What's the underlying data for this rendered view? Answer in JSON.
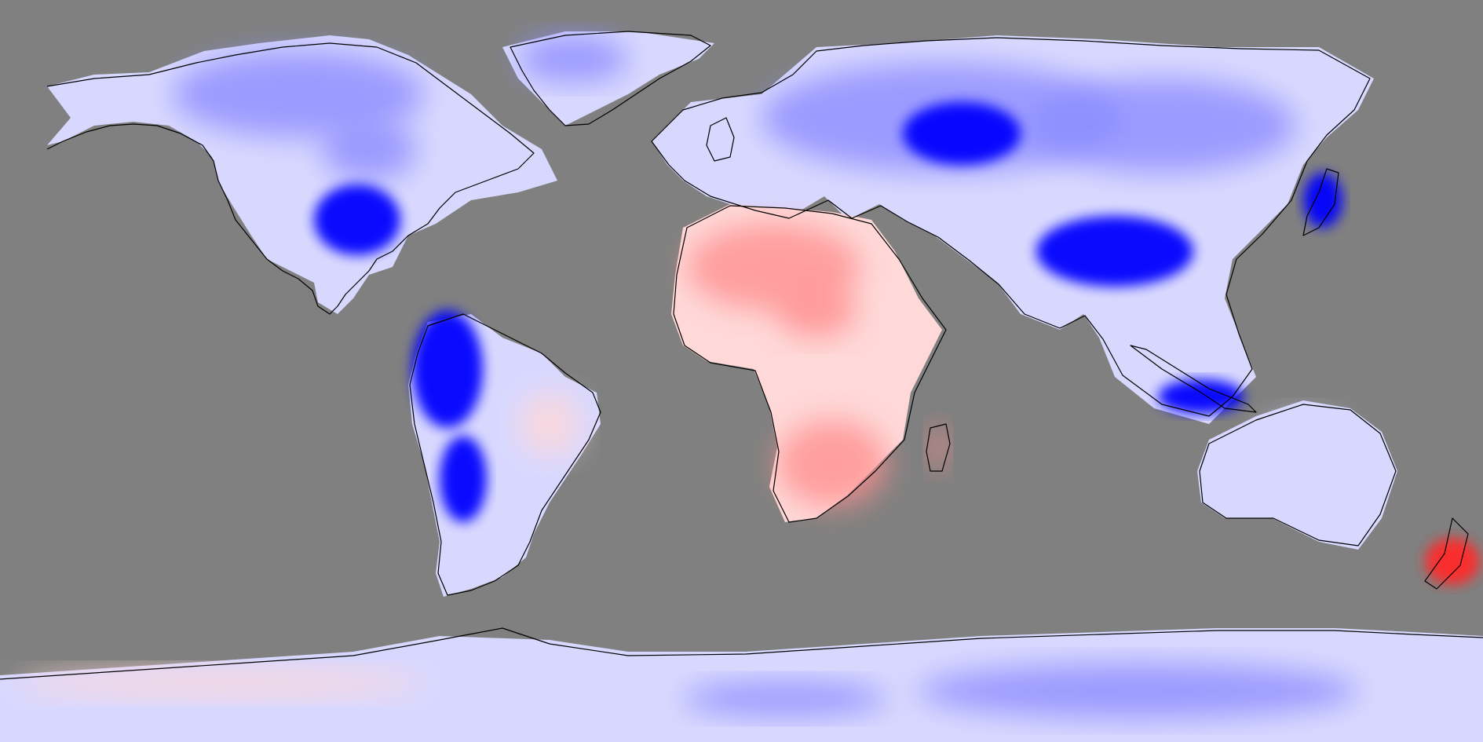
{
  "map": {
    "projection": "equirectangular",
    "ocean_mask_color": "#808080",
    "coastline_color": "#000000",
    "color_scale": {
      "strong_negative": "#0000ff",
      "negative": "#8c8cff",
      "weak_negative": "#d8d8ff",
      "neutral": "#ffffff",
      "weak_positive": "#ffd8d8",
      "positive": "#ff9090",
      "strong_positive": "#ff2a2a"
    },
    "regions": [
      {
        "name": "canada",
        "sign": "negative"
      },
      {
        "name": "greenland",
        "sign": "negative"
      },
      {
        "name": "central-united-states",
        "sign": "strong-negative"
      },
      {
        "name": "northern-south-america",
        "sign": "strong-negative"
      },
      {
        "name": "southern-andes",
        "sign": "strong-negative"
      },
      {
        "name": "eastern-brazil",
        "sign": "weak-positive"
      },
      {
        "name": "sahara",
        "sign": "positive"
      },
      {
        "name": "southern-africa",
        "sign": "positive"
      },
      {
        "name": "madagascar",
        "sign": "positive"
      },
      {
        "name": "northern-eurasia",
        "sign": "negative"
      },
      {
        "name": "western-russia",
        "sign": "strong-negative"
      },
      {
        "name": "tibet-china",
        "sign": "strong-negative"
      },
      {
        "name": "japan",
        "sign": "strong-negative"
      },
      {
        "name": "java-sumatra",
        "sign": "strong-negative"
      },
      {
        "name": "australia",
        "sign": "weak-negative"
      },
      {
        "name": "new-zealand",
        "sign": "strong-positive"
      },
      {
        "name": "west-antarctica",
        "sign": "weak-positive"
      },
      {
        "name": "east-antarctica",
        "sign": "negative"
      }
    ]
  }
}
